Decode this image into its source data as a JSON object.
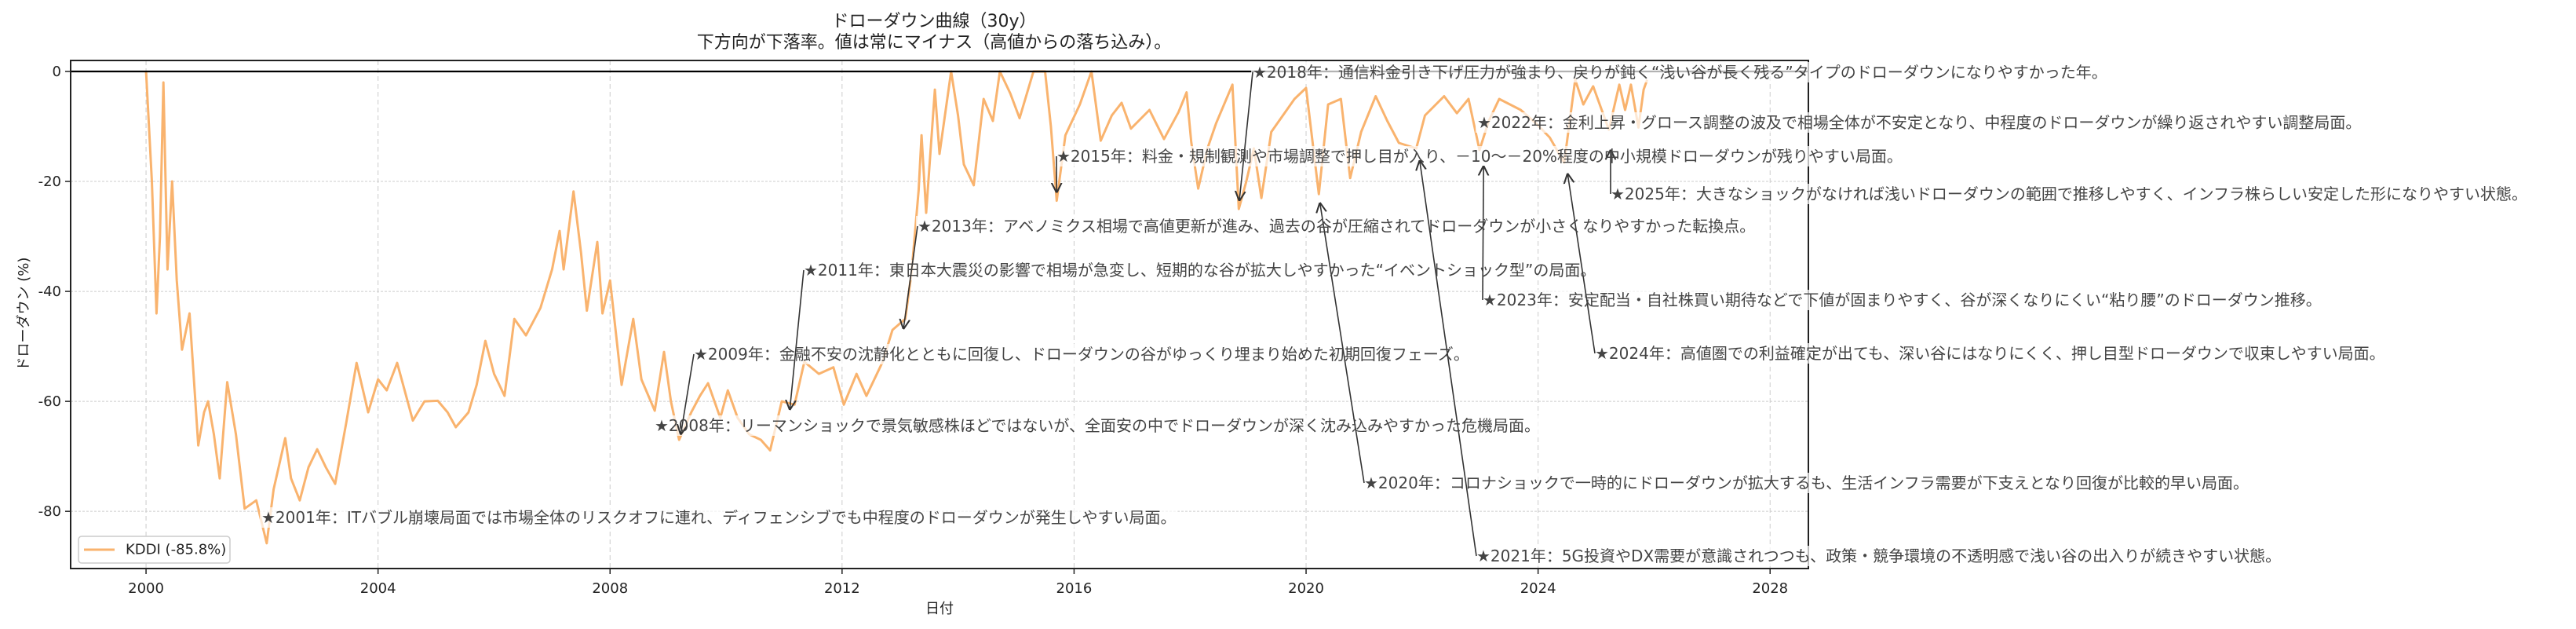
{
  "chart_data": {
    "type": "line",
    "title": "ドローダウン曲線（30y）",
    "subtitle": "下方向が下落率。値は常にマイナス（高値からの落ち込み）。",
    "xlabel": "日付",
    "ylabel": "ドローダウン (%)",
    "xlim": [
      1998.7,
      2028.66
    ],
    "ylim": [
      -90.4,
      2.0
    ],
    "x_ticks": [
      "2000",
      "2004",
      "2008",
      "2012",
      "2016",
      "2020",
      "2024",
      "2028"
    ],
    "y_ticks": [
      "0",
      "-20",
      "-40",
      "-60",
      "-80"
    ],
    "grid": true,
    "zero_line": true,
    "legend_position": "lower-left",
    "series": [
      {
        "name": "KDDI (-85.8%)",
        "color": "#f9b36e",
        "x": [
          2000.0,
          2000.1,
          2000.18,
          2000.24,
          2000.3,
          2000.37,
          2000.45,
          2000.53,
          2000.62,
          2000.75,
          2000.9,
          2001.0,
          2001.07,
          2001.17,
          2001.27,
          2001.4,
          2001.55,
          2001.7,
          2001.9,
          2002.08,
          2002.2,
          2002.4,
          2002.5,
          2002.65,
          2002.8,
          2002.95,
          2003.1,
          2003.26,
          2003.45,
          2003.63,
          2003.83,
          2004.0,
          2004.15,
          2004.33,
          2004.6,
          2004.8,
          2005.03,
          2005.2,
          2005.34,
          2005.56,
          2005.7,
          2005.85,
          2006.0,
          2006.18,
          2006.35,
          2006.55,
          2006.8,
          2007.0,
          2007.13,
          2007.2,
          2007.37,
          2007.5,
          2007.6,
          2007.78,
          2007.87,
          2008.0,
          2008.2,
          2008.4,
          2008.54,
          2008.77,
          2008.93,
          2009.05,
          2009.19,
          2009.4,
          2009.55,
          2009.69,
          2009.9,
          2010.03,
          2010.2,
          2010.4,
          2010.6,
          2010.76,
          2010.96,
          2011.18,
          2011.35,
          2011.6,
          2011.85,
          2012.03,
          2012.25,
          2012.42,
          2012.7,
          2012.87,
          2013.09,
          2013.2,
          2013.32,
          2013.37,
          2013.45,
          2013.6,
          2013.68,
          2013.88,
          2014.0,
          2014.1,
          2014.27,
          2014.44,
          2014.6,
          2014.72,
          2014.9,
          2015.06,
          2015.3,
          2015.5,
          2015.6,
          2015.7,
          2015.85,
          2016.1,
          2016.3,
          2016.46,
          2016.65,
          2016.82,
          2016.98,
          2017.3,
          2017.55,
          2017.8,
          2017.94,
          2018.02,
          2018.14,
          2018.3,
          2018.45,
          2018.73,
          2018.84,
          2018.97,
          2019.1,
          2019.23,
          2019.4,
          2019.8,
          2020.0,
          2020.22,
          2020.38,
          2020.6,
          2020.76,
          2020.95,
          2021.2,
          2021.4,
          2021.6,
          2021.9,
          2022.05,
          2022.38,
          2022.6,
          2022.8,
          2022.99,
          2023.15,
          2023.33,
          2023.7,
          2023.97,
          2024.2,
          2024.45,
          2024.64,
          2024.78,
          2024.95,
          2025.22,
          2025.4,
          2025.5,
          2025.6,
          2025.73,
          2025.82,
          2025.88
        ],
        "y": [
          0,
          -20,
          -44,
          -30,
          -2,
          -36,
          -20,
          -38,
          -50.6,
          -44,
          -68,
          -62,
          -60,
          -66,
          -74,
          -56.5,
          -66,
          -79.5,
          -78,
          -85.8,
          -76,
          -66.7,
          -74,
          -78,
          -72,
          -68.7,
          -72,
          -75,
          -64,
          -53,
          -62,
          -56,
          -58,
          -53,
          -63.5,
          -60,
          -59.9,
          -62,
          -64.7,
          -62,
          -57,
          -49,
          -55,
          -59,
          -45,
          -48,
          -43,
          -36,
          -29,
          -36,
          -21.8,
          -33,
          -43.5,
          -31,
          -44,
          -38,
          -57,
          -45,
          -56,
          -61.7,
          -51,
          -60,
          -67,
          -62,
          -59,
          -56.7,
          -63,
          -58,
          -63,
          -66,
          -67,
          -68.9,
          -60,
          -60.6,
          -52.8,
          -55,
          -53.8,
          -60.6,
          -55,
          -59,
          -52.8,
          -47,
          -45,
          -36.4,
          -21.6,
          -11.6,
          -25.7,
          -3.3,
          -15,
          0,
          -8,
          -16.9,
          -20.7,
          -5,
          -9,
          0,
          -4,
          -8.5,
          0,
          0,
          -10,
          -23.5,
          -11.6,
          -6,
          0,
          -12.6,
          -8,
          -5.7,
          -10.4,
          -7,
          -12.3,
          -7.4,
          -3.8,
          -12.8,
          -21.3,
          -14,
          -9.4,
          -2.4,
          -25,
          -20,
          -14,
          -23,
          -11,
          -5,
          -3,
          -22.3,
          -6,
          -5,
          -19.4,
          -11,
          -4.5,
          -9,
          -13,
          -14,
          -8,
          -4.5,
          -7.6,
          -5,
          -14.3,
          -9,
          -5,
          -7,
          -9.5,
          -12,
          -16.6,
          -1.5,
          -6,
          -2.7,
          -10.6,
          -2.4,
          -7,
          -2.4,
          -10.2,
          -3.3,
          -1.5
        ]
      }
    ],
    "annotations": [
      {
        "text": "★2001年：ITバブル崩壊局面では市場全体のリスクオフに連れ、ディフェンシブでも中程度のドローダウンが発生しやすい局面。",
        "x": 2002.1,
        "y": -81.2
      },
      {
        "text": "★2008年：リーマンショックで景気敏感株ほどではないが、全面安の中でドローダウンが深く沈み込みやすかった危機局面。",
        "x": 2008.9,
        "y": -64.4
      },
      {
        "text": "★2009年：金融不安の沈静化とともに回復し、ドローダウンの谷がゆっくり埋まり始めた初期回復フェーズ。",
        "x": 2009.22,
        "y": -65.9
      },
      {
        "text": "★2011年：東日本大震災の影響で相場が急変し、短期的な谷が拡大しやすかった“イベントショック型”の局面。",
        "x": 2011.1,
        "y": -61.4
      },
      {
        "text": "★2013年：アベノミクス相場で高値更新が進み、過去の谷が圧縮されてドローダウンが小さくなりやすかった転換点。",
        "x": 2013.06,
        "y": -46.7
      },
      {
        "text": "★2015年：料金・規制観測や市場調整で押し目が入り、－10～－20%程度の中小規模ドローダウンが残りやすい局面。",
        "x": 2015.7,
        "y": -21.9
      },
      {
        "text": "★2018年：通信料金引き下げ圧力が強まり、戻りが鈍く“浅い谷が長く残る”タイプのドローダウンになりやすかった年。",
        "x": 2018.85,
        "y": -23.4
      },
      {
        "text": "★2020年：コロナショックで一時的にドローダウンが拡大するも、生活インフラ需要が下支えとなり回復が比較的早い局面。",
        "x": 2020.24,
        "y": -24.0
      },
      {
        "text": "★2021年：5G投資やDX需要が意識されつつも、政策・競争環境の不透明感で浅い谷の出入りが続きやすい状態。",
        "x": 2021.96,
        "y": -16.3
      },
      {
        "text": "★2022年：金利上昇・グロース調整の波及で相場全体が不安定となり、中程度のドローダウンが繰り返されやすい調整局面。",
        "x": 2023.09,
        "y": -9.3
      },
      {
        "text": "★2023年：安定配当・自社株買い期待などで下値が固まりやすく、谷が深くなりにくい“粘り腰”のドローダウン推移。",
        "x": 2023.06,
        "y": -17.3
      },
      {
        "text": "★2024年：高値圏での利益確定が出ても、深い谷にはなりにくく、押し目型ドローダウンで収束しやすい局面。",
        "x": 2024.51,
        "y": -18.7
      },
      {
        "text": "★2025年：大きなショックがなければ浅いドローダウンの範囲で推移しやすく、インフラ株らしい安定した形になりやすい状態。",
        "x": 2025.25,
        "y": -14.4
      }
    ]
  }
}
